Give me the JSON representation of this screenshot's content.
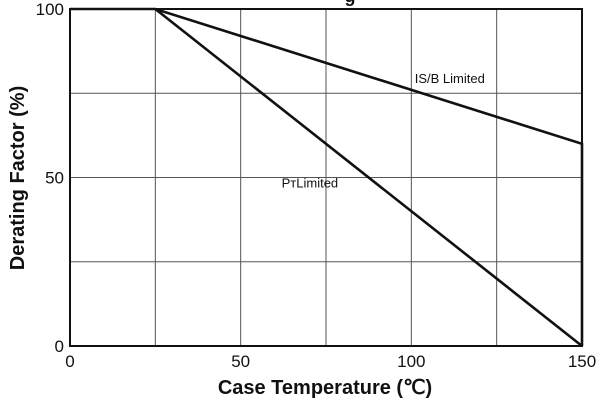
{
  "chart_data": {
    "type": "line",
    "title": "",
    "title_partial_visible": "g",
    "xlabel": "Case Temperature (℃)",
    "ylabel": "Derating Factor (%)",
    "xlim": [
      0,
      150
    ],
    "ylim": [
      0,
      100
    ],
    "xticks": [
      0,
      50,
      100,
      150
    ],
    "xtick_labels": [
      "0",
      "50",
      "100",
      "150"
    ],
    "yticks": [
      0,
      50,
      100
    ],
    "ytick_labels": [
      "0",
      "50",
      "100"
    ],
    "grid": true,
    "grid_x": [
      25,
      50,
      75,
      100,
      125
    ],
    "grid_y": [
      25,
      50,
      75
    ],
    "series": [
      {
        "name": "IS/B Limited",
        "x": [
          0,
          25,
          150,
          150
        ],
        "y": [
          100,
          100,
          60,
          0
        ]
      },
      {
        "name": "PᴛLimited",
        "x": [
          25,
          150
        ],
        "y": [
          100,
          0
        ]
      }
    ],
    "annotations": [
      {
        "text": "IS/B  Limited",
        "x": 101,
        "y": 78
      },
      {
        "text": "PᴛLimited",
        "x": 62,
        "y": 47
      }
    ]
  }
}
